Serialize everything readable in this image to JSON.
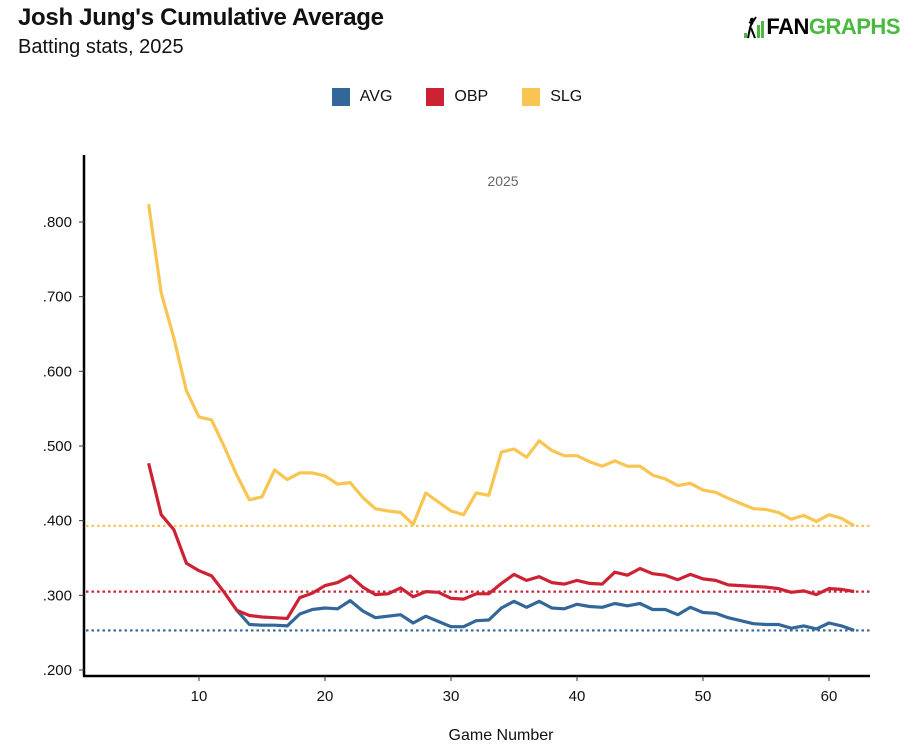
{
  "header": {
    "title": "Josh Jung's Cumulative Average",
    "subtitle": "Batting stats, 2025",
    "logo_fan": "FAN",
    "logo_graphs": "GRAPHS"
  },
  "legend": [
    {
      "label": "AVG",
      "color": "#336699"
    },
    {
      "label": "OBP",
      "color": "#cc2233"
    },
    {
      "label": "SLG",
      "color": "#f9c552"
    }
  ],
  "chart_data": {
    "type": "line",
    "title": "Josh Jung's Cumulative Average",
    "subtitle": "Batting stats, 2025",
    "facet_label": "2025",
    "xlabel": "Game Number",
    "ylabel": "",
    "xlim": [
      2,
      63
    ],
    "ylim": [
      0.19,
      0.89
    ],
    "x_ticks": [
      10,
      20,
      30,
      40,
      50,
      60
    ],
    "y_ticks": [
      0.2,
      0.3,
      0.4,
      0.5,
      0.6,
      0.7,
      0.8
    ],
    "y_tick_labels": [
      ".200",
      ".300",
      ".400",
      ".500",
      ".600",
      ".700",
      ".800"
    ],
    "grid": false,
    "legend_position": "top-center",
    "x": [
      6,
      7,
      8,
      9,
      10,
      11,
      12,
      13,
      14,
      15,
      16,
      17,
      18,
      19,
      20,
      21,
      22,
      23,
      24,
      25,
      26,
      27,
      28,
      29,
      30,
      31,
      32,
      33,
      34,
      35,
      36,
      37,
      38,
      39,
      40,
      41,
      42,
      43,
      44,
      45,
      46,
      47,
      48,
      49,
      50,
      51,
      52,
      53,
      54,
      55,
      56,
      57,
      58,
      59,
      60,
      61,
      62
    ],
    "series": [
      {
        "name": "AVG",
        "color": "#336699",
        "values": [
          null,
          null,
          null,
          null,
          null,
          null,
          null,
          0.28,
          0.261,
          0.26,
          0.26,
          0.259,
          0.275,
          0.281,
          0.283,
          0.282,
          0.293,
          0.279,
          0.27,
          0.272,
          0.274,
          0.263,
          0.272,
          0.265,
          0.258,
          0.258,
          0.266,
          0.267,
          0.283,
          0.292,
          0.284,
          0.292,
          0.283,
          0.282,
          0.288,
          0.285,
          0.284,
          0.289,
          0.286,
          0.289,
          0.281,
          0.281,
          0.274,
          0.284,
          0.277,
          0.276,
          0.27,
          0.266,
          0.262,
          0.261,
          0.261,
          0.256,
          0.259,
          0.255,
          0.263,
          0.259,
          0.253
        ],
        "reference": 0.253
      },
      {
        "name": "OBP",
        "color": "#cc2233",
        "values": [
          0.477,
          0.408,
          0.388,
          0.343,
          0.333,
          0.326,
          0.304,
          0.28,
          0.273,
          0.271,
          0.27,
          0.269,
          0.297,
          0.303,
          0.313,
          0.317,
          0.326,
          0.311,
          0.301,
          0.302,
          0.31,
          0.298,
          0.305,
          0.304,
          0.296,
          0.295,
          0.302,
          0.302,
          0.316,
          0.328,
          0.32,
          0.325,
          0.317,
          0.315,
          0.32,
          0.316,
          0.315,
          0.331,
          0.327,
          0.336,
          0.329,
          0.327,
          0.321,
          0.328,
          0.322,
          0.32,
          0.314,
          0.313,
          0.312,
          0.311,
          0.309,
          0.304,
          0.306,
          0.301,
          0.309,
          0.308,
          0.305
        ],
        "reference": 0.305
      },
      {
        "name": "SLG",
        "color": "#f9c552",
        "values": [
          0.824,
          0.705,
          0.645,
          0.574,
          0.539,
          0.535,
          0.499,
          0.461,
          0.428,
          0.432,
          0.468,
          0.455,
          0.464,
          0.464,
          0.46,
          0.449,
          0.451,
          0.431,
          0.416,
          0.413,
          0.411,
          0.395,
          0.437,
          0.425,
          0.413,
          0.408,
          0.437,
          0.434,
          0.492,
          0.496,
          0.485,
          0.507,
          0.494,
          0.487,
          0.487,
          0.479,
          0.473,
          0.48,
          0.473,
          0.473,
          0.461,
          0.456,
          0.447,
          0.45,
          0.441,
          0.438,
          0.43,
          0.423,
          0.416,
          0.415,
          0.411,
          0.402,
          0.407,
          0.399,
          0.408,
          0.403,
          0.393
        ],
        "reference": 0.393
      }
    ]
  }
}
